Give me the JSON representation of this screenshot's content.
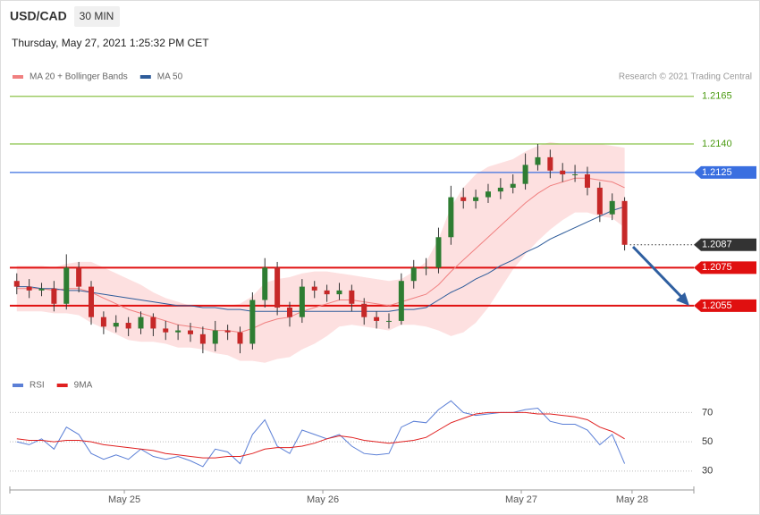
{
  "chart_data": [
    {
      "type": "candlestick",
      "title": "USD/CAD",
      "subtitle": "30 MIN",
      "timestamp": "Thursday, May 27, 2021 1:25:32 PM CET",
      "credit": "Research © 2021 Trading Central",
      "up_color": "#2e7d32",
      "down_color": "#c62828",
      "xlim": [
        -0.56,
        54.58
      ],
      "ylim": [
        1.2023,
        1.2171
      ],
      "open": [
        1.2068,
        1.2065,
        1.2063,
        1.2064,
        1.2056,
        1.2075,
        1.2065,
        1.2049,
        1.2044,
        1.2046,
        1.2043,
        1.2049,
        1.2043,
        1.2041,
        1.2042,
        1.204,
        1.2035,
        1.2042,
        1.2041,
        1.2035,
        1.2058,
        1.2075,
        1.2054,
        1.2049,
        1.2065,
        1.2063,
        1.2061,
        1.2063,
        1.2056,
        1.2049,
        1.2047,
        1.2047,
        1.2068,
        1.2075,
        1.2075,
        1.2091,
        1.2112,
        1.211,
        1.2112,
        1.2115,
        1.2117,
        1.2119,
        1.2129,
        1.2133,
        1.2126,
        1.2124,
        1.2124,
        1.2117,
        1.2103,
        1.211
      ],
      "high": [
        1.2072,
        1.2069,
        1.2067,
        1.2068,
        1.2082,
        1.2078,
        1.2068,
        1.2052,
        1.205,
        1.2049,
        1.2052,
        1.2051,
        1.2047,
        1.2045,
        1.2046,
        1.2044,
        1.2047,
        1.2045,
        1.2044,
        1.2062,
        1.208,
        1.2078,
        1.2057,
        1.2069,
        1.2068,
        1.2066,
        1.2067,
        1.2066,
        1.2059,
        1.2052,
        1.2051,
        1.2072,
        1.2079,
        1.208,
        1.2096,
        1.2118,
        1.2117,
        1.2116,
        1.2119,
        1.2122,
        1.2124,
        1.2135,
        1.214,
        1.2137,
        1.213,
        1.2129,
        1.2128,
        1.212,
        1.2114,
        1.2112
      ],
      "low": [
        1.2061,
        1.2059,
        1.206,
        1.2052,
        1.2053,
        1.2062,
        1.2045,
        1.204,
        1.2041,
        1.2039,
        1.204,
        1.2039,
        1.2037,
        1.2037,
        1.2036,
        1.203,
        1.2031,
        1.2037,
        1.203,
        1.2032,
        1.2054,
        1.205,
        1.2044,
        1.2046,
        1.2059,
        1.2057,
        1.2058,
        1.2052,
        1.2045,
        1.2043,
        1.2043,
        1.2045,
        1.2064,
        1.2071,
        1.2072,
        1.2087,
        1.2106,
        1.2106,
        1.2109,
        1.2111,
        1.2114,
        1.2116,
        1.2126,
        1.2122,
        1.212,
        1.212,
        1.2113,
        1.2099,
        1.21,
        1.2084
      ],
      "close": [
        1.2065,
        1.2063,
        1.2064,
        1.2056,
        1.2075,
        1.2065,
        1.2049,
        1.2044,
        1.2046,
        1.2043,
        1.2049,
        1.2043,
        1.2041,
        1.2042,
        1.204,
        1.2035,
        1.2042,
        1.2041,
        1.2035,
        1.2058,
        1.2075,
        1.2054,
        1.2049,
        1.2065,
        1.2063,
        1.2061,
        1.2063,
        1.2056,
        1.2049,
        1.2047,
        1.2047,
        1.2068,
        1.2075,
        1.2075,
        1.2091,
        1.2112,
        1.211,
        1.2112,
        1.2115,
        1.2117,
        1.2119,
        1.2129,
        1.2133,
        1.2126,
        1.2124,
        1.2124,
        1.2117,
        1.2103,
        1.211,
        1.2087
      ],
      "series": [
        {
          "name": "MA 20 + Bollinger Bands",
          "color": "#f08080",
          "band_color": "#fde0e0",
          "values": [
            1.2064,
            1.2064,
            1.2064,
            1.2063,
            1.2064,
            1.2064,
            1.2062,
            1.2059,
            1.2056,
            1.2053,
            1.2051,
            1.2049,
            1.2047,
            1.2045,
            1.2044,
            1.2043,
            1.2042,
            1.2042,
            1.2041,
            1.2043,
            1.2046,
            1.2048,
            1.2049,
            1.2052,
            1.2054,
            1.2056,
            1.2058,
            1.2058,
            1.2057,
            1.2056,
            1.2055,
            1.2057,
            1.2059,
            1.2061,
            1.2066,
            1.2073,
            1.2079,
            1.2085,
            1.2091,
            1.2097,
            1.2103,
            1.2109,
            1.2114,
            1.2118,
            1.212,
            1.2122,
            1.2122,
            1.2121,
            1.212,
            1.2117
          ],
          "upper": [
            1.2076,
            1.2076,
            1.2076,
            1.2075,
            1.2077,
            1.2078,
            1.2078,
            1.2075,
            1.2072,
            1.2069,
            1.2066,
            1.2062,
            1.2059,
            1.2057,
            1.2055,
            1.2054,
            1.2054,
            1.2055,
            1.2056,
            1.206,
            1.2067,
            1.2069,
            1.207,
            1.2072,
            1.2073,
            1.2073,
            1.2072,
            1.2071,
            1.207,
            1.2069,
            1.2068,
            1.2069,
            1.2073,
            1.2078,
            1.209,
            1.2107,
            1.2117,
            1.2124,
            1.2128,
            1.213,
            1.2132,
            1.2136,
            1.2139,
            1.2141,
            1.214,
            1.214,
            1.214,
            1.214,
            1.2139,
            1.2138
          ],
          "lower": [
            1.2052,
            1.2052,
            1.2052,
            1.2051,
            1.2051,
            1.205,
            1.2046,
            1.2043,
            1.204,
            1.2037,
            1.2036,
            1.2036,
            1.2035,
            1.2033,
            1.2033,
            1.2032,
            1.203,
            1.2029,
            1.2026,
            1.2026,
            1.2025,
            1.2027,
            1.2028,
            1.2032,
            1.2035,
            1.2039,
            1.2044,
            1.2045,
            1.2044,
            1.2043,
            1.2042,
            1.2045,
            1.2045,
            1.2044,
            1.2042,
            1.2039,
            1.2041,
            1.2046,
            1.2054,
            1.2064,
            1.2074,
            1.2082,
            1.2089,
            1.2095,
            1.21,
            1.2104,
            1.2104,
            1.2102,
            1.2101,
            1.2096
          ]
        },
        {
          "name": "MA 50",
          "color": "#2e5c9a",
          "values": [
            1.2065,
            1.2065,
            1.2064,
            1.2064,
            1.2063,
            1.2063,
            1.2062,
            1.2061,
            1.206,
            1.2059,
            1.2058,
            1.2057,
            1.2056,
            1.2055,
            1.2055,
            1.2054,
            1.2054,
            1.2053,
            1.2053,
            1.2052,
            1.2052,
            1.2052,
            1.2052,
            1.2052,
            1.2052,
            1.2052,
            1.2052,
            1.2052,
            1.2052,
            1.2052,
            1.2052,
            1.2053,
            1.2053,
            1.2054,
            1.2058,
            1.2062,
            1.2065,
            1.2069,
            1.2072,
            1.2076,
            1.2079,
            1.2083,
            1.2086,
            1.209,
            1.2093,
            1.2096,
            1.2099,
            1.2102,
            1.2105,
            1.2107
          ]
        }
      ],
      "levels": [
        {
          "value": 1.2165,
          "color": "#8bc34a",
          "text_color": "#4a9a10",
          "boxed": false,
          "dotted": false
        },
        {
          "value": 1.214,
          "label": "1.2140",
          "color": "#8bc34a",
          "text_color": "#4a9a10",
          "boxed": false,
          "dotted": false
        },
        {
          "value": 1.2125,
          "color": "#3a6fe0",
          "text_color": "#ffffff",
          "boxed": true,
          "dotted": false
        },
        {
          "value": 1.2087,
          "color": "#333333",
          "text_color": "#ffffff",
          "boxed": true,
          "dotted": true
        },
        {
          "value": 1.2075,
          "color": "#e01010",
          "text_color": "#ffffff",
          "boxed": true,
          "dotted": false
        },
        {
          "value": 1.2055,
          "color": "#e01010",
          "text_color": "#ffffff",
          "boxed": true,
          "dotted": false
        }
      ]
    },
    {
      "type": "line",
      "xlim": [
        -0.56,
        54.58
      ],
      "ylim": [
        25,
        80
      ],
      "yticks": [
        30,
        50,
        70
      ],
      "xticks": [
        {
          "value": 8.67,
          "label": "May 25"
        },
        {
          "value": 24.67,
          "label": "May 26"
        },
        {
          "value": 40.67,
          "label": "May 27"
        },
        {
          "value": 49.6,
          "label": "May 28"
        }
      ],
      "series": [
        {
          "name": "RSI",
          "color": "#5b7fd6",
          "values": [
            50,
            48,
            52,
            45,
            60,
            55,
            42,
            38,
            41,
            38,
            45,
            40,
            38,
            40,
            37,
            33,
            45,
            43,
            35,
            55,
            65,
            47,
            42,
            58,
            55,
            52,
            55,
            47,
            42,
            41,
            42,
            60,
            64,
            63,
            72,
            78,
            70,
            68,
            69,
            70,
            70,
            72,
            73,
            64,
            62,
            62,
            58,
            48,
            55,
            35
          ]
        },
        {
          "name": "9MA",
          "color": "#e02020",
          "values": [
            52,
            51,
            51,
            50,
            51,
            51,
            50,
            48,
            47,
            46,
            45,
            44,
            42,
            41,
            40,
            39,
            39,
            40,
            40,
            42,
            45,
            46,
            46,
            47,
            49,
            52,
            54,
            53,
            51,
            50,
            49,
            50,
            51,
            53,
            58,
            63,
            66,
            69,
            70,
            70,
            70,
            70,
            69,
            69,
            68,
            67,
            65,
            60,
            57,
            52
          ]
        }
      ]
    }
  ]
}
